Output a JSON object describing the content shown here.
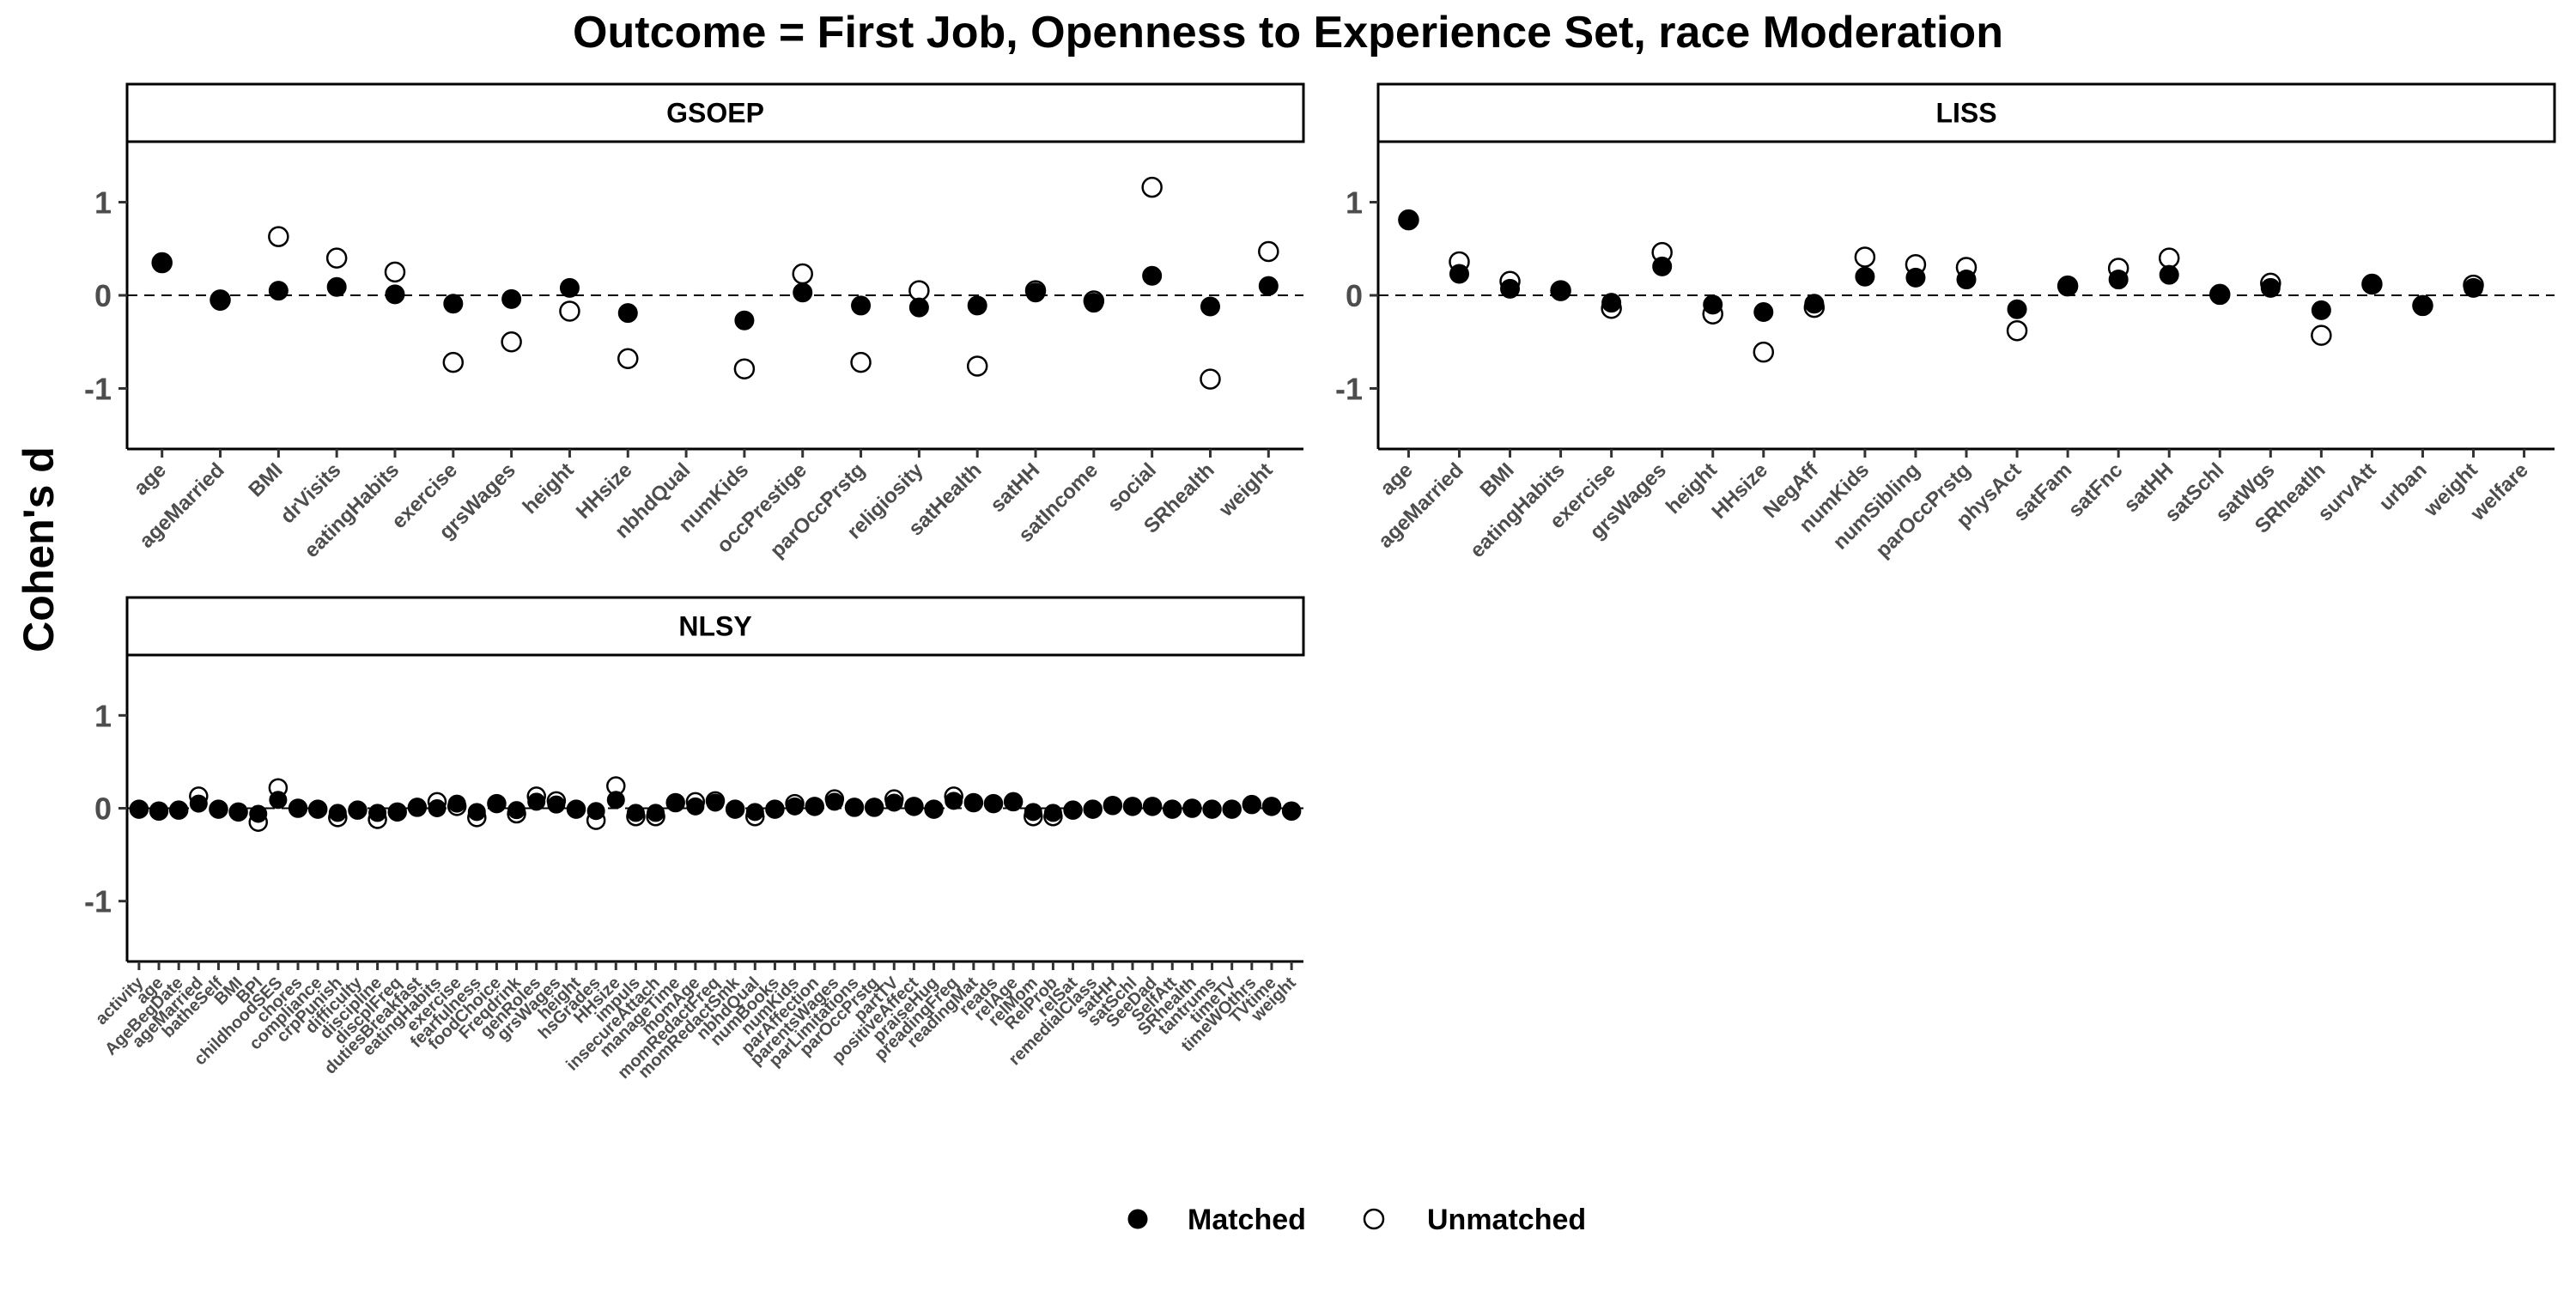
{
  "title": "Outcome = First Job, Openness to Experience Set, race Moderation",
  "ylabel": "Cohen's d",
  "legend": {
    "position": "bottom",
    "entries": [
      {
        "key": "matched",
        "label": "Matched"
      },
      {
        "key": "unmatched",
        "label": "Unmatched"
      }
    ]
  },
  "chart_data": [
    {
      "type": "scatter",
      "panel": "GSOEP",
      "ylim": [
        -1.65,
        1.65
      ],
      "yticks": [
        -1,
        0,
        1
      ],
      "reference_line": 0,
      "grid": false,
      "categories": [
        "age",
        "ageMarried",
        "BMI",
        "drVisits",
        "eatingHabits",
        "exercise",
        "grsWages",
        "height",
        "HHsize",
        "nbhdQual",
        "numKids",
        "occPrestige",
        "parOccPrstg",
        "religiosity",
        "satHealth",
        "satHH",
        "satIncome",
        "social",
        "SRhealth",
        "weight"
      ],
      "series": [
        {
          "name": "Matched",
          "values": [
            0.35,
            -0.06,
            0.05,
            0.09,
            0.01,
            -0.09,
            -0.04,
            0.08,
            -0.19,
            null,
            -0.27,
            0.03,
            -0.11,
            -0.13,
            -0.11,
            0.03,
            -0.08,
            0.21,
            -0.12,
            0.1
          ]
        },
        {
          "name": "Unmatched",
          "values": [
            0.35,
            -0.05,
            0.63,
            0.4,
            0.25,
            -0.72,
            -0.5,
            -0.17,
            -0.68,
            null,
            -0.79,
            0.23,
            -0.72,
            0.05,
            -0.76,
            0.05,
            -0.06,
            1.16,
            -0.9,
            0.47
          ]
        }
      ]
    },
    {
      "type": "scatter",
      "panel": "LISS",
      "ylim": [
        -1.65,
        1.65
      ],
      "yticks": [
        -1,
        0,
        1
      ],
      "reference_line": 0,
      "grid": false,
      "categories": [
        "age",
        "ageMarried",
        "BMI",
        "eatingHabits",
        "exercise",
        "grsWages",
        "height",
        "HHsize",
        "NegAff",
        "numKids",
        "numSibling",
        "parOccPrstg",
        "physAct",
        "satFam",
        "satFnc",
        "satHH",
        "satSchl",
        "satWgs",
        "SRheatlh",
        "survAtt",
        "urban",
        "weight",
        "welfare"
      ],
      "series": [
        {
          "name": "Matched",
          "values": [
            0.81,
            0.23,
            0.07,
            0.05,
            -0.08,
            0.31,
            -0.1,
            -0.18,
            -0.09,
            0.2,
            0.19,
            0.17,
            -0.15,
            0.1,
            0.17,
            0.22,
            0.01,
            0.08,
            -0.16,
            0.12,
            -0.11,
            0.08,
            null
          ]
        },
        {
          "name": "Unmatched",
          "values": [
            0.81,
            0.36,
            0.15,
            0.05,
            -0.14,
            0.46,
            -0.2,
            -0.61,
            -0.13,
            0.41,
            0.33,
            0.3,
            -0.38,
            0.1,
            0.29,
            0.4,
            0.01,
            0.13,
            -0.43,
            0.12,
            -0.11,
            0.11,
            null
          ]
        }
      ]
    },
    {
      "type": "scatter",
      "panel": "NLSY",
      "ylim": [
        -1.65,
        1.65
      ],
      "yticks": [
        -1,
        0,
        1
      ],
      "reference_line": 0,
      "grid": false,
      "categories": [
        "activity",
        "age",
        "AgeBegDate",
        "ageMarried",
        "batheSelf",
        "BMI",
        "BPI",
        "childhoodSES",
        "chores",
        "compliance",
        "crpPunish",
        "difficulty",
        "discipline",
        "discplFreq",
        "dutiesBreakfast",
        "eatingHabits",
        "exercise",
        "fearfulness",
        "foodChoice",
        "Freqdrink",
        "genRoles",
        "grsWages",
        "height",
        "hsGrades",
        "HHsize",
        "impuls",
        "insecureAttach",
        "manageTime",
        "momAge",
        "momRedactFreq",
        "momRedactSmk",
        "nbhdQual",
        "numBooks",
        "numKids",
        "parAffection",
        "parentsWages",
        "parLimitations",
        "parOccPrstg",
        "partTV",
        "positiveAffect",
        "praiseHug",
        "preadingFreq",
        "readingMat",
        "reads",
        "relAge",
        "relMom",
        "RelProb",
        "relSat",
        "remedialClass",
        "satHH",
        "satSchl",
        "SeeDad",
        "SelfAtt",
        "SRhealth",
        "tantrums",
        "timeTV",
        "timeWOthrs",
        "TVtime",
        "weight"
      ],
      "series": [
        {
          "name": "Matched",
          "values": [
            -0.01,
            -0.03,
            -0.02,
            0.05,
            -0.01,
            -0.04,
            -0.06,
            0.09,
            0.0,
            -0.01,
            -0.05,
            -0.02,
            -0.05,
            -0.04,
            0.01,
            0.0,
            0.05,
            -0.04,
            0.05,
            -0.02,
            0.07,
            0.04,
            -0.01,
            -0.03,
            0.09,
            -0.05,
            -0.05,
            0.06,
            0.02,
            0.06,
            -0.01,
            -0.04,
            -0.01,
            0.02,
            0.02,
            0.07,
            0.01,
            0.01,
            0.06,
            0.02,
            -0.01,
            0.08,
            0.06,
            0.05,
            0.07,
            -0.04,
            -0.05,
            -0.02,
            -0.01,
            0.03,
            0.02,
            0.02,
            -0.01,
            0.0,
            -0.01,
            -0.01,
            0.04,
            0.02,
            -0.03
          ]
        },
        {
          "name": "Unmatched",
          "values": [
            -0.01,
            -0.03,
            -0.02,
            0.13,
            -0.01,
            -0.04,
            -0.15,
            0.22,
            0.0,
            -0.01,
            -0.1,
            -0.02,
            -0.12,
            -0.04,
            0.01,
            0.07,
            0.02,
            -0.1,
            0.05,
            -0.06,
            0.13,
            0.08,
            -0.01,
            -0.13,
            0.24,
            -0.09,
            -0.09,
            0.06,
            0.07,
            0.08,
            -0.01,
            -0.09,
            -0.01,
            0.05,
            0.02,
            0.1,
            0.01,
            0.01,
            0.1,
            0.02,
            -0.01,
            0.13,
            0.06,
            0.05,
            0.07,
            -0.09,
            -0.09,
            -0.02,
            -0.01,
            0.03,
            0.02,
            0.02,
            -0.01,
            0.0,
            -0.01,
            -0.01,
            0.04,
            0.02,
            -0.03
          ]
        }
      ]
    }
  ]
}
